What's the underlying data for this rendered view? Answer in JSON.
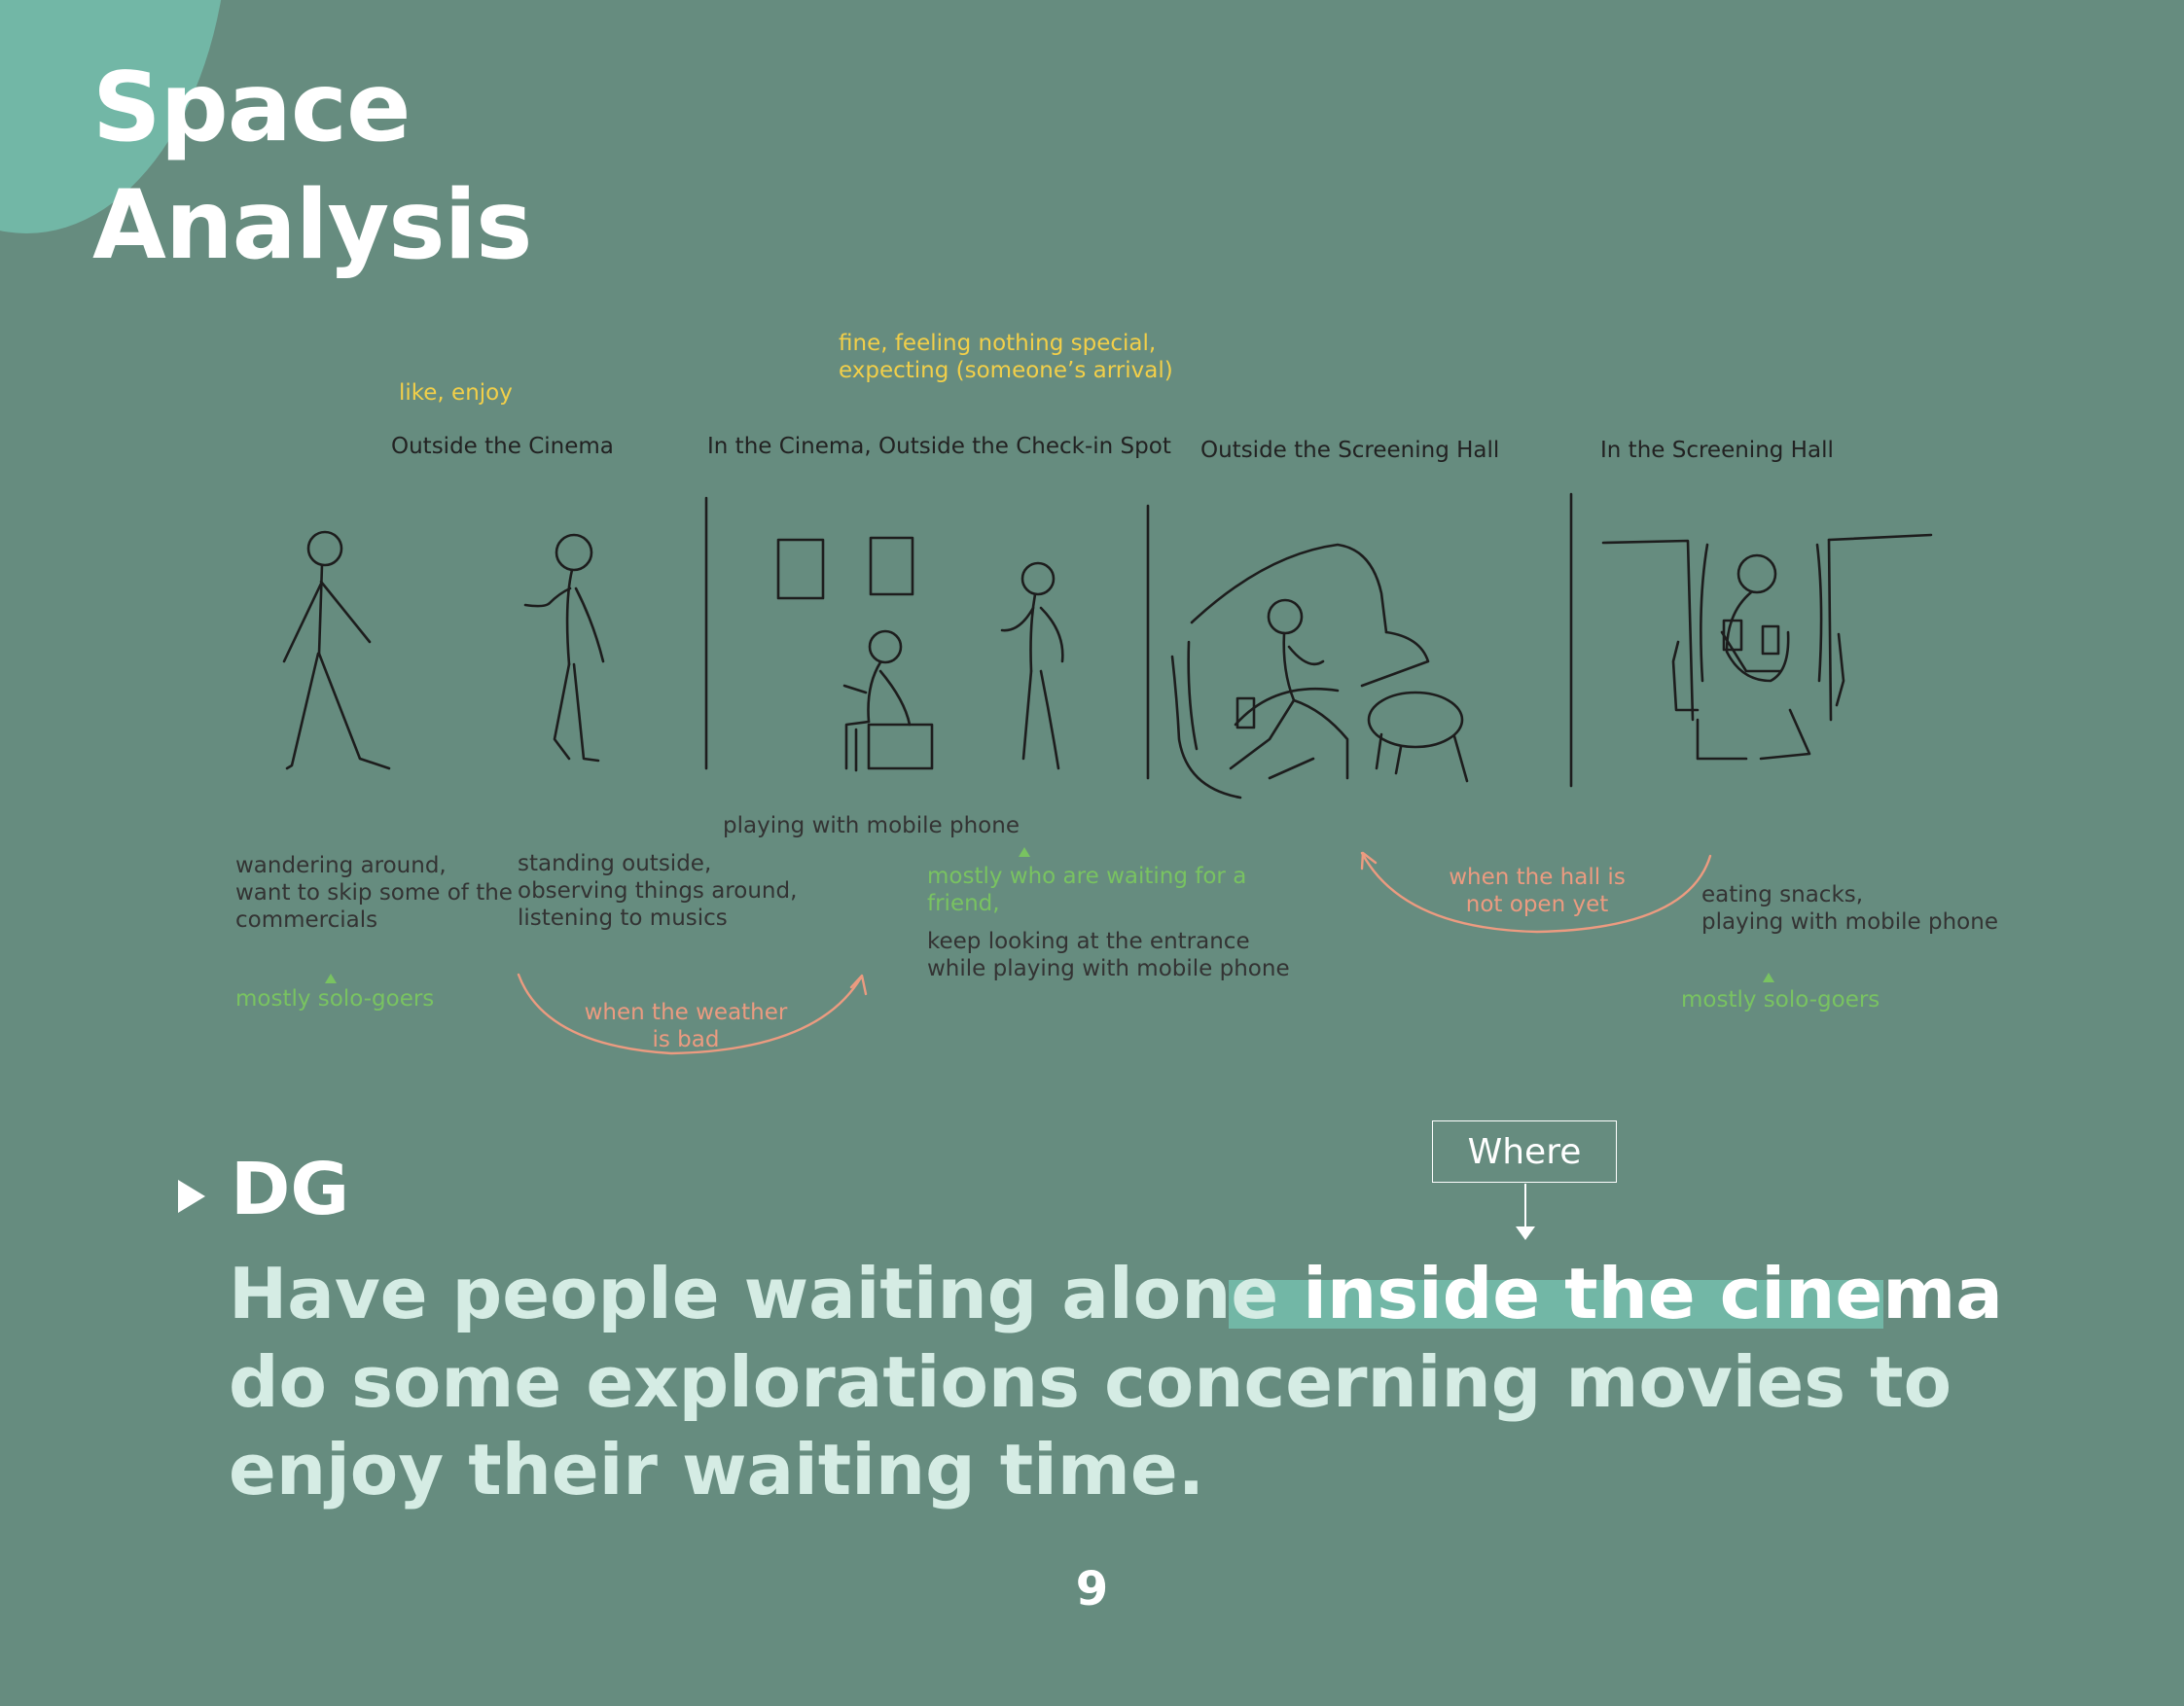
{
  "title": {
    "line1": "Space",
    "line2": "Analysis"
  },
  "feelings": {
    "outside_cinema": "like, enjoy",
    "checkin_line1": "fine, feeling nothing special,",
    "checkin_line2": "expecting (someone’s arrival)"
  },
  "stages": [
    {
      "label": "Outside the Cinema"
    },
    {
      "label": "In the Cinema, Outside the Check-in Spot"
    },
    {
      "label": "Outside the Screening Hall"
    },
    {
      "label": "In the Screening Hall"
    }
  ],
  "notes": {
    "wandering": "wandering around,\nwant to skip some of the\ncommercials",
    "standing": "standing outside,\nobserving things around,\nlistening to musics",
    "playing_phone": "playing with mobile phone",
    "keep_looking": "keep looking at the entrance\nwhile playing with mobile phone",
    "eating": "eating snacks,\nplaying with mobile phone"
  },
  "groups": {
    "solo_1": "mostly solo-goers",
    "waiting_friend": "mostly who are waiting for a\nfriend,",
    "solo_2": "mostly solo-goers"
  },
  "transitions": {
    "weather": "when the weather\nis bad",
    "hall": "when the hall is\nnot open yet"
  },
  "annotation": {
    "where": "Where"
  },
  "dg": {
    "label": "DG",
    "line1_pre": "Have people waiting alone ",
    "line1_highlight": "inside the cinema",
    "line2": "do some explorations concerning movies to",
    "line3": "enjoy their waiting time."
  },
  "page_number": "9",
  "colors": {
    "background": "#668c7f",
    "corner": "#72b7a6",
    "highlight": "#72b7a6",
    "feeling_yellow": "#f2cf49",
    "group_green": "#79c361",
    "transition_orange": "#ec9b80",
    "statement_text": "#d5ece4"
  }
}
